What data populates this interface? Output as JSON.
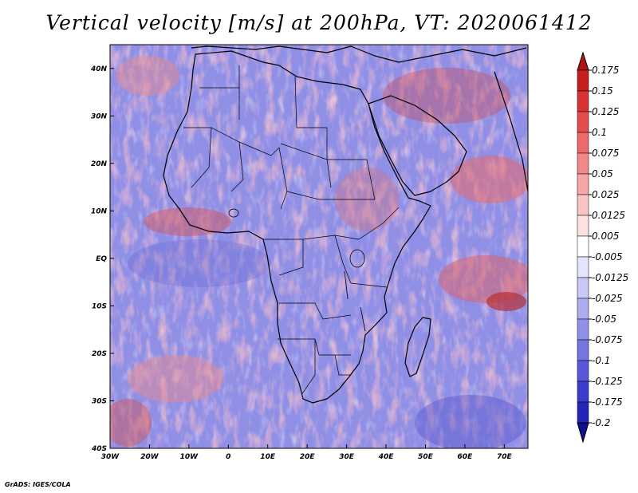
{
  "title": "Vertical velocity [m/s] at 200hPa, VT: 2020061412",
  "credit": "GrADS: IGES/COLA",
  "map": {
    "region": "Africa",
    "lon_range": [
      -30,
      76
    ],
    "lat_range": [
      -40,
      45
    ],
    "lon_ticks": [
      {
        "value": -30,
        "label": "30W"
      },
      {
        "value": -20,
        "label": "20W"
      },
      {
        "value": -10,
        "label": "10W"
      },
      {
        "value": 0,
        "label": "0"
      },
      {
        "value": 10,
        "label": "10E"
      },
      {
        "value": 20,
        "label": "20E"
      },
      {
        "value": 30,
        "label": "30E"
      },
      {
        "value": 40,
        "label": "40E"
      },
      {
        "value": 50,
        "label": "50E"
      },
      {
        "value": 60,
        "label": "60E"
      },
      {
        "value": 70,
        "label": "70E"
      }
    ],
    "lat_ticks": [
      {
        "value": 40,
        "label": "40N"
      },
      {
        "value": 30,
        "label": "30N"
      },
      {
        "value": 20,
        "label": "20N"
      },
      {
        "value": 10,
        "label": "10N"
      },
      {
        "value": 0,
        "label": "EQ"
      },
      {
        "value": -10,
        "label": "10S"
      },
      {
        "value": -20,
        "label": "20S"
      },
      {
        "value": -30,
        "label": "30S"
      },
      {
        "value": -40,
        "label": "40S"
      }
    ]
  },
  "colorbar": {
    "levels": [
      {
        "label": "0.175",
        "color": "#c41e1e"
      },
      {
        "label": "0.15",
        "color": "#d83434"
      },
      {
        "label": "0.125",
        "color": "#e24e4e"
      },
      {
        "label": "0.1",
        "color": "#ec6a6a"
      },
      {
        "label": "0.075",
        "color": "#f28888"
      },
      {
        "label": "0.05",
        "color": "#f6a6a6"
      },
      {
        "label": "0.025",
        "color": "#fac4c4"
      },
      {
        "label": "0.0125",
        "color": "#fde0e0"
      },
      {
        "label": "0.005",
        "color": "#ffffff"
      },
      {
        "label": "-0.005",
        "color": "#e4e4fc"
      },
      {
        "label": "-0.0125",
        "color": "#c8c8f6"
      },
      {
        "label": "-0.025",
        "color": "#acacf0"
      },
      {
        "label": "-0.05",
        "color": "#9090ea"
      },
      {
        "label": "-0.075",
        "color": "#7474e2"
      },
      {
        "label": "-0.1",
        "color": "#5858d8"
      },
      {
        "label": "-0.125",
        "color": "#3c3cca"
      },
      {
        "label": "-0.175",
        "color": "#2424b8"
      },
      {
        "label": "-0.2",
        "color": "#1414a0"
      }
    ],
    "top_arrow_color": "#b01414",
    "bottom_arrow_color": "#10108c"
  }
}
